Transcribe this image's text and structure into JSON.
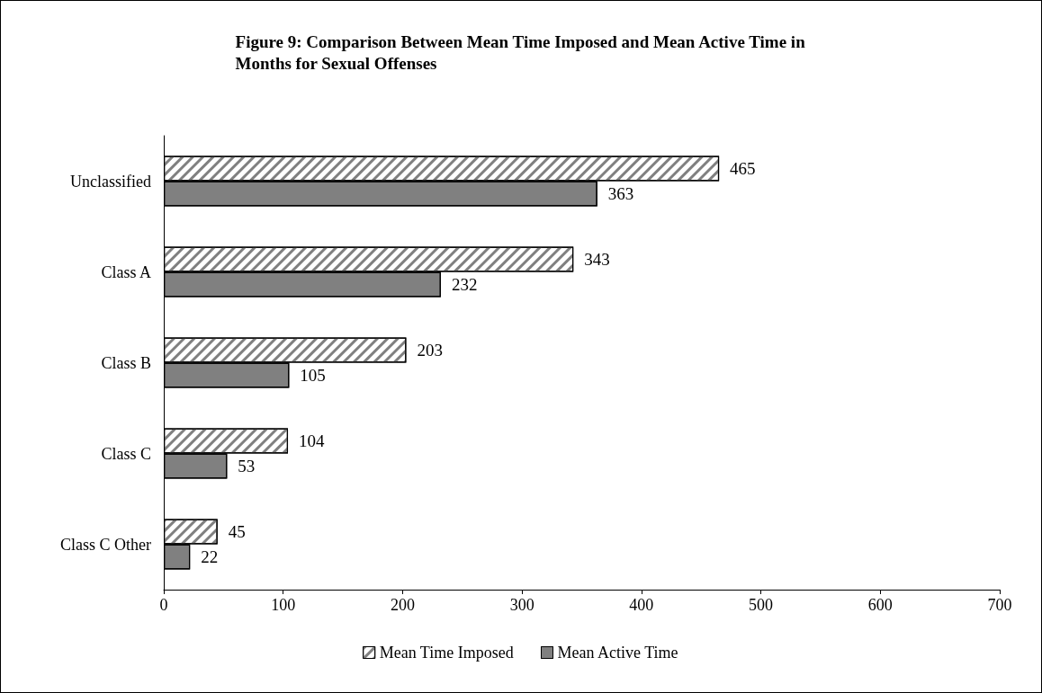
{
  "chart_data": {
    "type": "bar",
    "orientation": "horizontal",
    "title": "Figure 9: Comparison Between Mean Time Imposed and Mean Active Time in\nMonths for Sexual Offenses",
    "categories": [
      "Unclassified",
      "Class A",
      "Class B",
      "Class C",
      "Class C Other"
    ],
    "series": [
      {
        "name": "Mean Time Imposed",
        "color": "#ffffff",
        "values": [
          465,
          343,
          203,
          104,
          45
        ]
      },
      {
        "name": "Mean Active Time",
        "color": "#808080",
        "values": [
          363,
          232,
          105,
          53,
          22
        ]
      }
    ],
    "xlim": [
      0,
      700
    ],
    "xticks": [
      0,
      100,
      200,
      300,
      400,
      500,
      600,
      700
    ],
    "grid": false,
    "legend": "bottom",
    "data_labels": true
  }
}
